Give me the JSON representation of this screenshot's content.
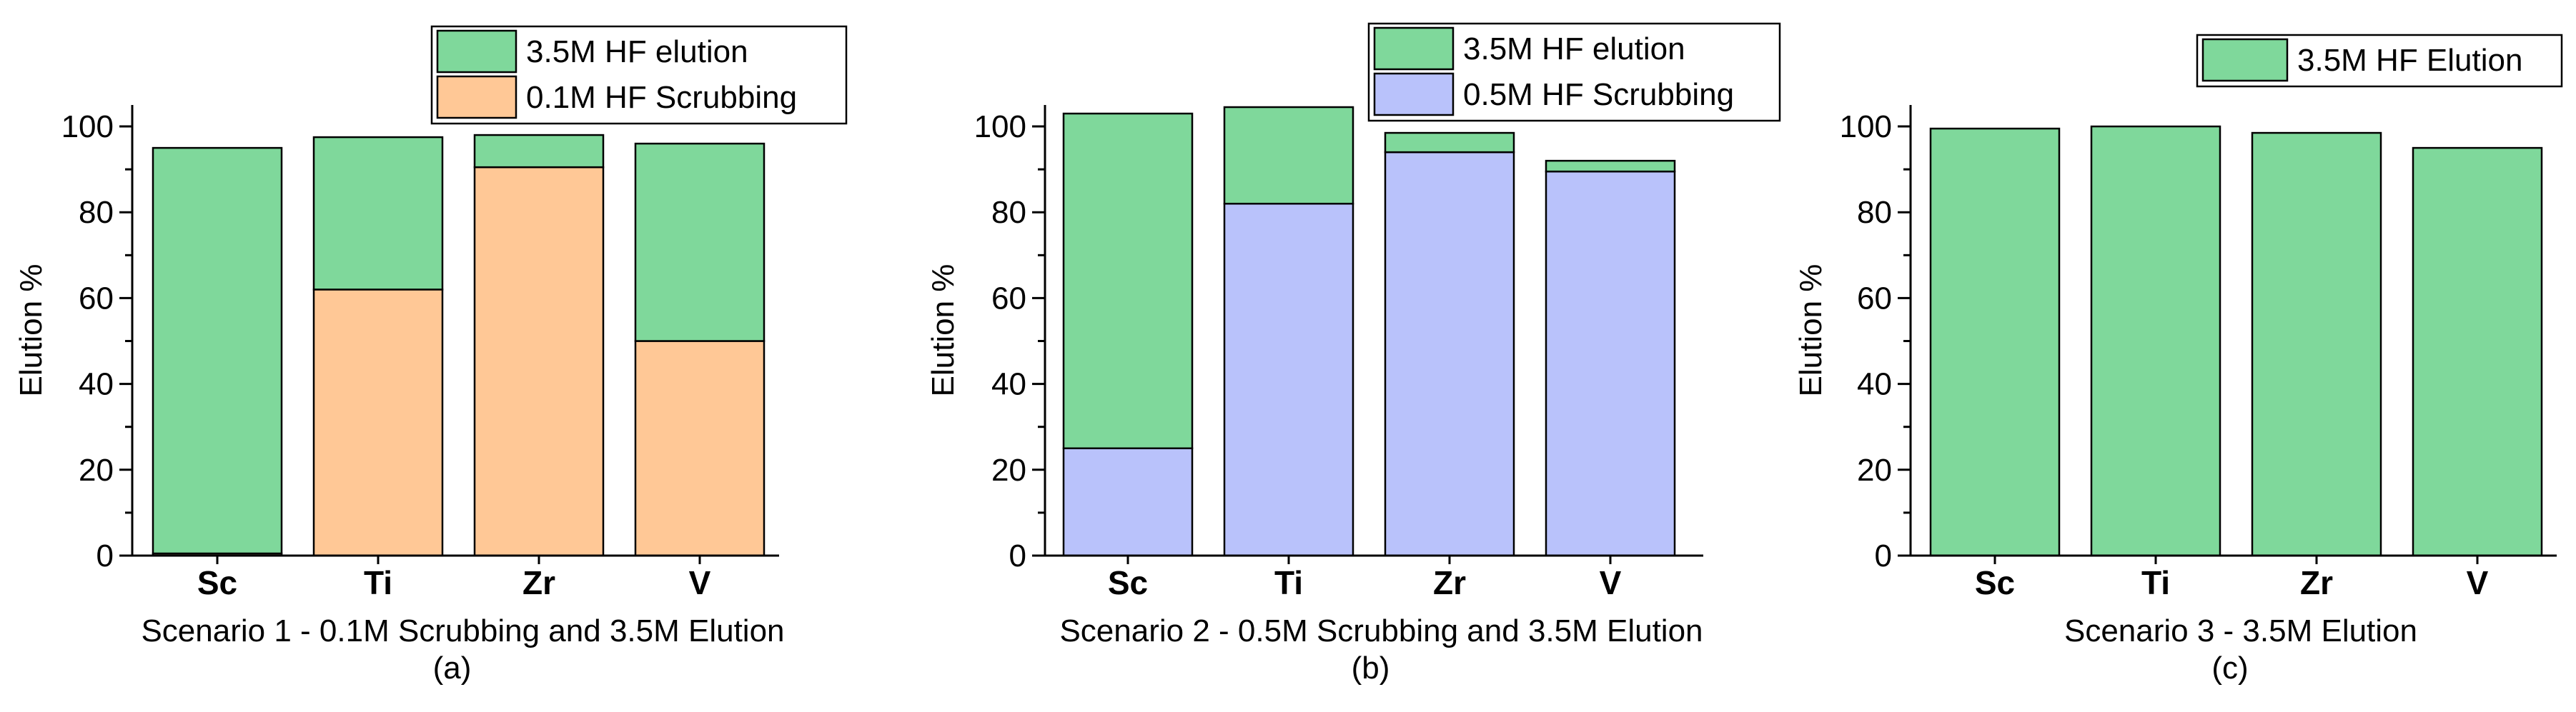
{
  "colors": {
    "elution": "#7fd89b",
    "scrub_01": "#ffc896",
    "scrub_05": "#b9c2fb",
    "stroke": "#000000"
  },
  "chart_data": [
    {
      "type": "bar",
      "stacked": true,
      "categories": [
        "Sc",
        "Ti",
        "Zr",
        "V"
      ],
      "series": [
        {
          "name": "0.1M HF Scrubbing",
          "color_key": "scrub_01",
          "values": [
            0.5,
            62,
            90.5,
            50
          ]
        },
        {
          "name": "3.5M HF elution",
          "color_key": "elution",
          "values": [
            94.5,
            35.5,
            7.5,
            46
          ]
        }
      ],
      "legend_order": [
        1,
        0
      ],
      "legend_position": "top-right",
      "xlabel": "Scenario 1 - 0.1M Scrubbing and 3.5M Elution",
      "sublabel": "(a)",
      "ylabel": "Elution %",
      "ylim": [
        0,
        105
      ],
      "yticks": [
        "0",
        "20",
        "40",
        "60",
        "80",
        "100"
      ],
      "grid": false
    },
    {
      "type": "bar",
      "stacked": true,
      "categories": [
        "Sc",
        "Ti",
        "Zr",
        "V"
      ],
      "series": [
        {
          "name": "0.5M HF Scrubbing",
          "color_key": "scrub_05",
          "values": [
            25,
            82,
            94,
            89.5
          ]
        },
        {
          "name": "3.5M HF elution",
          "color_key": "elution",
          "values": [
            78,
            22.5,
            4.5,
            2.5
          ]
        }
      ],
      "legend_order": [
        1,
        0
      ],
      "legend_position": "top-right",
      "xlabel": "Scenario 2 - 0.5M Scrubbing and 3.5M Elution",
      "sublabel": "(b)",
      "ylabel": "Elution %",
      "ylim": [
        0,
        105
      ],
      "yticks": [
        "0",
        "20",
        "40",
        "60",
        "80",
        "100"
      ],
      "grid": false
    },
    {
      "type": "bar",
      "stacked": false,
      "categories": [
        "Sc",
        "Ti",
        "Zr",
        "V"
      ],
      "series": [
        {
          "name": "3.5M HF Elution",
          "color_key": "elution",
          "values": [
            99.5,
            100,
            98.5,
            95
          ]
        }
      ],
      "legend_order": [
        0
      ],
      "legend_position": "top-right",
      "xlabel": "Scenario 3 - 3.5M  Elution",
      "sublabel": "(c)",
      "ylabel": "Elution %",
      "ylim": [
        0,
        105
      ],
      "yticks": [
        "0",
        "20",
        "40",
        "60",
        "80",
        "100"
      ],
      "grid": false
    }
  ]
}
